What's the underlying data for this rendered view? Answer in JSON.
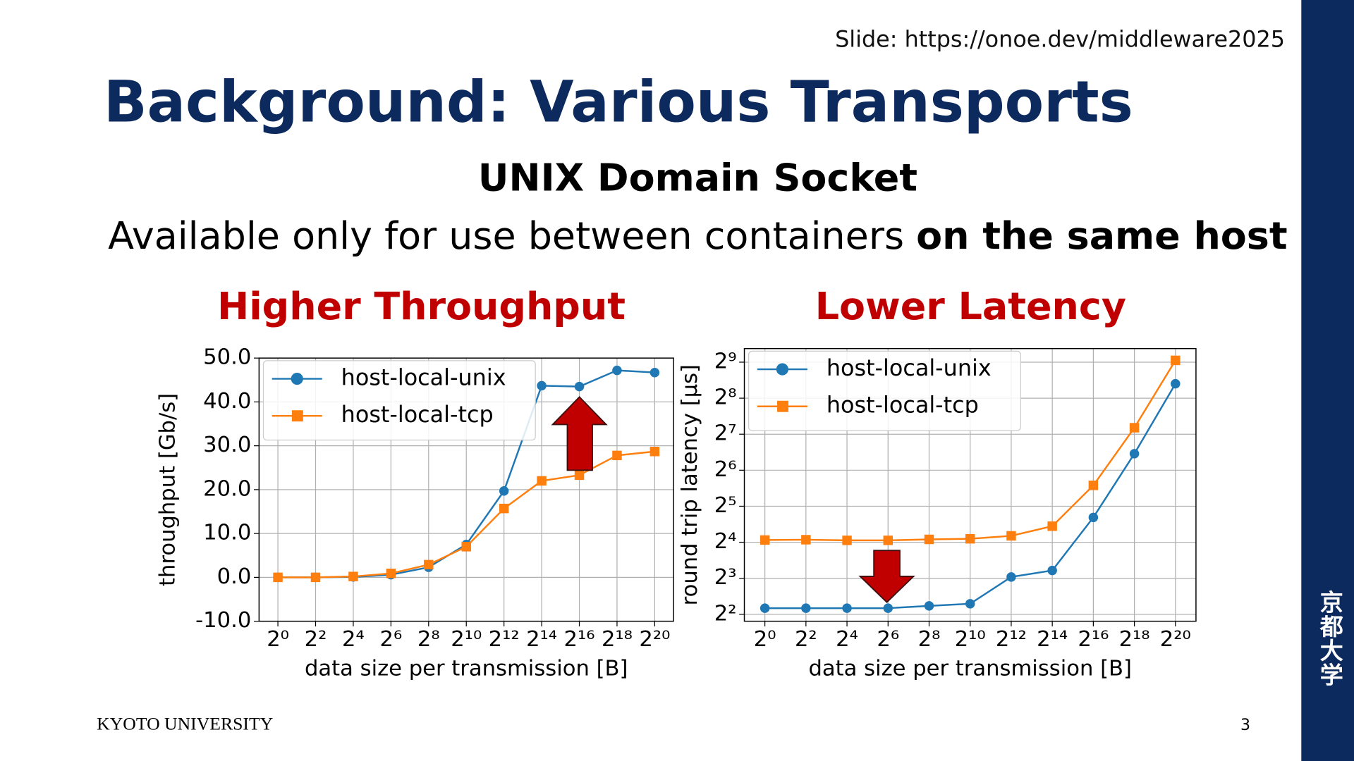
{
  "slide": {
    "source": "Slide: https://onoe.dev/middleware2025",
    "title": "Background: Various Transports",
    "heading": "UNIX Domain Socket",
    "statement": {
      "text": "Available only for use between containers",
      "emphasis": "on the same host"
    },
    "footer": "KYOTO UNIVERSITY",
    "page": 3,
    "side_mark": "京都大学"
  },
  "chart_data": [
    {
      "type": "line",
      "title": "Higher Throughput",
      "x_label": "data size per transmission [B]",
      "y_label": "throughput [Gb/s]",
      "x": [
        1,
        4,
        16,
        64,
        256,
        1024,
        4096,
        16384,
        65536,
        262144,
        1048576
      ],
      "xlog": true,
      "log_base": 2,
      "xlim": [
        0.5,
        2097152
      ],
      "xticks": [
        {
          "value": 1,
          "label": "2⁰"
        },
        {
          "value": 4,
          "label": "2²"
        },
        {
          "value": 16,
          "label": "2⁴"
        },
        {
          "value": 64,
          "label": "2⁶"
        },
        {
          "value": 256,
          "label": "2⁸"
        },
        {
          "value": 1024,
          "label": "2¹⁰"
        },
        {
          "value": 4096,
          "label": "2¹²"
        },
        {
          "value": 16384,
          "label": "2¹⁴"
        },
        {
          "value": 65536,
          "label": "2¹⁶"
        },
        {
          "value": 262144,
          "label": "2¹⁸"
        },
        {
          "value": 1048576,
          "label": "2²⁰"
        }
      ],
      "ylim": [
        -10,
        50
      ],
      "yticks": [
        {
          "value": -10,
          "label": "-10.0"
        },
        {
          "value": 0,
          "label": "0.0"
        },
        {
          "value": 10,
          "label": "10.0"
        },
        {
          "value": 20,
          "label": "20.0"
        },
        {
          "value": 30,
          "label": "30.0"
        },
        {
          "value": 40,
          "label": "40.0"
        },
        {
          "value": 50,
          "label": "50.0"
        }
      ],
      "grid": true,
      "legend": "upper left",
      "series": [
        {
          "name": "host-local-unix",
          "color": "#1f77b4",
          "marker": "circle",
          "values": [
            0,
            0,
            0.1,
            0.6,
            2.3,
            7.5,
            19.7,
            43.7,
            43.5,
            47.2,
            46.7
          ]
        },
        {
          "name": "host-local-tcp",
          "color": "#ff7f0e",
          "marker": "square",
          "values": [
            0,
            0,
            0.2,
            0.9,
            2.9,
            7.0,
            15.7,
            22.0,
            23.3,
            27.8,
            28.7
          ]
        }
      ]
    },
    {
      "type": "line",
      "title": "Lower Latency",
      "x_label": "data size per transmission [B]",
      "y_label": "round trip latency [µs]",
      "x": [
        1,
        4,
        16,
        64,
        256,
        1024,
        4096,
        16384,
        65536,
        262144,
        1048576
      ],
      "xlog": true,
      "log_base": 2,
      "xlim": [
        0.5,
        2097152
      ],
      "xticks": [
        {
          "value": 1,
          "label": "2⁰"
        },
        {
          "value": 4,
          "label": "2²"
        },
        {
          "value": 16,
          "label": "2⁴"
        },
        {
          "value": 64,
          "label": "2⁶"
        },
        {
          "value": 256,
          "label": "2⁸"
        },
        {
          "value": 1024,
          "label": "2¹⁰"
        },
        {
          "value": 4096,
          "label": "2¹²"
        },
        {
          "value": 16384,
          "label": "2¹⁴"
        },
        {
          "value": 65536,
          "label": "2¹⁶"
        },
        {
          "value": 262144,
          "label": "2¹⁸"
        },
        {
          "value": 1048576,
          "label": "2²⁰"
        }
      ],
      "ylog": true,
      "ylim": [
        3.5,
        665
      ],
      "yticks": [
        {
          "value": 4,
          "label": "2²"
        },
        {
          "value": 8,
          "label": "2³"
        },
        {
          "value": 16,
          "label": "2⁴"
        },
        {
          "value": 32,
          "label": "2⁵"
        },
        {
          "value": 64,
          "label": "2⁶"
        },
        {
          "value": 128,
          "label": "2⁷"
        },
        {
          "value": 256,
          "label": "2⁸"
        },
        {
          "value": 512,
          "label": "2⁹"
        }
      ],
      "grid": true,
      "legend": "upper left",
      "series": [
        {
          "name": "host-local-unix",
          "color": "#1f77b4",
          "marker": "circle",
          "values": [
            4.5,
            4.5,
            4.5,
            4.5,
            4.7,
            4.9,
            8.2,
            9.3,
            25.8,
            88,
            338
          ]
        },
        {
          "name": "host-local-tcp",
          "color": "#ff7f0e",
          "marker": "square",
          "values": [
            16.7,
            16.8,
            16.6,
            16.6,
            16.9,
            17.1,
            18.1,
            21.8,
            47.8,
            145,
            530
          ]
        }
      ]
    }
  ]
}
